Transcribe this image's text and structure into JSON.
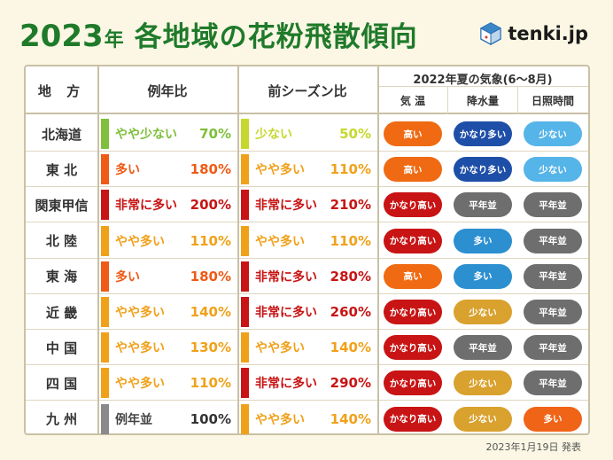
{
  "header": {
    "year": "2023",
    "year_suffix": "年",
    "title": "各地域の花粉飛散傾向",
    "logo_text": "tenki.jp"
  },
  "table": {
    "col_region": "地 方",
    "col_normal": "例年比",
    "col_prev": "前シーズン比",
    "col_weather": "2022年夏の気象(6〜8月)",
    "sub_temp": "気 温",
    "sub_rain": "降水量",
    "sub_sun": "日照時間",
    "rows": [
      {
        "region": "北海道",
        "normal_level": "やや少ない",
        "normal_pct": "70%",
        "prev_level": "少ない",
        "prev_pct": "50%",
        "temp": "高い",
        "rain": "かなり多い",
        "sun": "少ない"
      },
      {
        "region": "東 北",
        "normal_level": "多い",
        "normal_pct": "180%",
        "prev_level": "やや多い",
        "prev_pct": "110%",
        "temp": "高い",
        "rain": "かなり多い",
        "sun": "少ない"
      },
      {
        "region": "関東甲信",
        "normal_level": "非常に多い",
        "normal_pct": "200%",
        "prev_level": "非常に多い",
        "prev_pct": "210%",
        "temp": "かなり高い",
        "rain": "平年並",
        "sun": "平年並"
      },
      {
        "region": "北 陸",
        "normal_level": "やや多い",
        "normal_pct": "110%",
        "prev_level": "やや多い",
        "prev_pct": "110%",
        "temp": "かなり高い",
        "rain": "多い",
        "sun": "平年並"
      },
      {
        "region": "東 海",
        "normal_level": "多い",
        "normal_pct": "180%",
        "prev_level": "非常に多い",
        "prev_pct": "280%",
        "temp": "高い",
        "rain": "多い",
        "sun": "平年並"
      },
      {
        "region": "近 畿",
        "normal_level": "やや多い",
        "normal_pct": "140%",
        "prev_level": "非常に多い",
        "prev_pct": "260%",
        "temp": "かなり高い",
        "rain": "少ない",
        "sun": "平年並"
      },
      {
        "region": "中 国",
        "normal_level": "やや多い",
        "normal_pct": "130%",
        "prev_level": "やや多い",
        "prev_pct": "140%",
        "temp": "かなり高い",
        "rain": "平年並",
        "sun": "平年並"
      },
      {
        "region": "四 国",
        "normal_level": "やや多い",
        "normal_pct": "110%",
        "prev_level": "非常に多い",
        "prev_pct": "290%",
        "temp": "かなり高い",
        "rain": "少ない",
        "sun": "平年並"
      },
      {
        "region": "九 州",
        "normal_level": "例年並",
        "normal_pct": "100%",
        "prev_level": "やや多い",
        "prev_pct": "140%",
        "temp": "かなり高い",
        "rain": "少ない",
        "sun": "多い"
      }
    ]
  },
  "footer": {
    "date": "2023年1月19日 発表"
  },
  "colors": {
    "title_green": "#1f7a2a",
    "level": {
      "少ない": "#c6d82e",
      "やや少ない": "#7fbf3c",
      "例年並": "#8a8a8a",
      "やや多い": "#f0a11a",
      "多い": "#ef5a16",
      "非常に多い": "#c81414"
    },
    "pill": {
      "高い": "#ef6a12",
      "かなり高い": "#c81414",
      "かなり多い": "#1e4fa8",
      "多い_rain": "#2c8fd0",
      "平年並": "#6e6e6e",
      "少ない_rain": "#d9a12e",
      "少ない_sun": "#55b4e8",
      "多い_sun": "#f06418"
    }
  }
}
